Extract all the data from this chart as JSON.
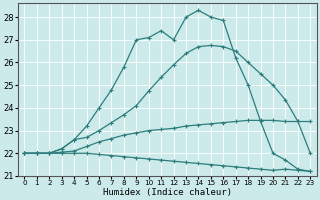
{
  "title": "",
  "xlabel": "Humidex (Indice chaleur)",
  "ylabel": "",
  "bg_color": "#cceaea",
  "grid_color": "#aad4d4",
  "line_color": "#2d7d7d",
  "xlim": [
    -0.5,
    23.5
  ],
  "ylim": [
    21,
    28.6
  ],
  "yticks": [
    21,
    22,
    23,
    24,
    25,
    26,
    27,
    28
  ],
  "xticks": [
    0,
    1,
    2,
    3,
    4,
    5,
    6,
    7,
    8,
    9,
    10,
    11,
    12,
    13,
    14,
    15,
    16,
    17,
    18,
    19,
    20,
    21,
    22,
    23
  ],
  "curves": [
    {
      "x": [
        0,
        1,
        2,
        3,
        4,
        5,
        6,
        7,
        8,
        9,
        10,
        11,
        12,
        13,
        14,
        15,
        16,
        17,
        18,
        19,
        20,
        21,
        22,
        23
      ],
      "y": [
        22.0,
        22.0,
        22.0,
        22.2,
        22.6,
        23.2,
        24.0,
        24.8,
        25.8,
        27.0,
        27.1,
        27.4,
        27.0,
        28.0,
        28.3,
        28.0,
        27.85,
        26.2,
        25.0,
        23.4,
        22.0,
        21.7,
        21.3,
        21.2
      ]
    },
    {
      "x": [
        0,
        1,
        2,
        3,
        4,
        5,
        6,
        7,
        8,
        9,
        10,
        11,
        12,
        13,
        14,
        15,
        16,
        17,
        18,
        19,
        20,
        21,
        22,
        23
      ],
      "y": [
        22.0,
        22.0,
        22.0,
        22.2,
        22.6,
        22.7,
        23.0,
        23.35,
        23.7,
        24.1,
        24.75,
        25.35,
        25.9,
        26.4,
        26.7,
        26.75,
        26.7,
        26.5,
        26.0,
        25.5,
        25.0,
        24.35,
        23.4,
        22.0
      ]
    },
    {
      "x": [
        0,
        1,
        2,
        3,
        4,
        5,
        6,
        7,
        8,
        9,
        10,
        11,
        12,
        13,
        14,
        15,
        16,
        17,
        18,
        19,
        20,
        21,
        22,
        23
      ],
      "y": [
        22.0,
        22.0,
        22.0,
        22.05,
        22.1,
        22.3,
        22.5,
        22.65,
        22.8,
        22.9,
        23.0,
        23.05,
        23.1,
        23.2,
        23.25,
        23.3,
        23.35,
        23.4,
        23.45,
        23.45,
        23.45,
        23.4,
        23.4,
        23.4
      ]
    },
    {
      "x": [
        0,
        1,
        2,
        3,
        4,
        5,
        6,
        7,
        8,
        9,
        10,
        11,
        12,
        13,
        14,
        15,
        16,
        17,
        18,
        19,
        20,
        21,
        22,
        23
      ],
      "y": [
        22.0,
        22.0,
        22.0,
        22.0,
        22.0,
        22.0,
        21.95,
        21.9,
        21.85,
        21.8,
        21.75,
        21.7,
        21.65,
        21.6,
        21.55,
        21.5,
        21.45,
        21.4,
        21.35,
        21.3,
        21.25,
        21.3,
        21.25,
        21.2
      ]
    }
  ]
}
